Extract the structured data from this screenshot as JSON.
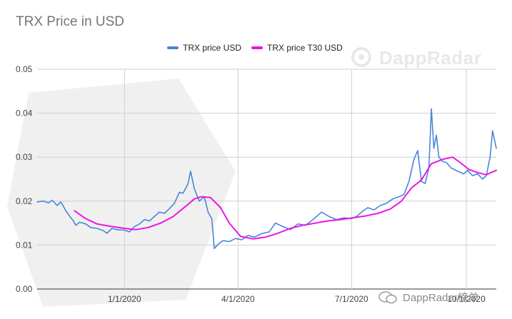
{
  "chart_data": {
    "type": "line",
    "title": "TRX Price in USD",
    "xlabel": "",
    "ylabel": "",
    "ylim": [
      0,
      0.05
    ],
    "x_range": [
      "2019-10-23",
      "2020-10-25"
    ],
    "y_ticks": [
      "0.00",
      "0.01",
      "0.02",
      "0.03",
      "0.04",
      "0.05"
    ],
    "x_ticks": [
      {
        "date": "2020-01-01",
        "label": "1/1/2020"
      },
      {
        "date": "2020-04-01",
        "label": "4/1/2020"
      },
      {
        "date": "2020-07-01",
        "label": "7/1/2020"
      },
      {
        "date": "2020-10-01",
        "label": "10/1/2020"
      }
    ],
    "grid": true,
    "legend_position": "top",
    "series": [
      {
        "name": "TRX price USD",
        "color": "#4a86d8",
        "points": [
          [
            "2019-10-23",
            0.0198
          ],
          [
            "2019-10-28",
            0.02
          ],
          [
            "2019-11-01",
            0.0196
          ],
          [
            "2019-11-04",
            0.0202
          ],
          [
            "2019-11-08",
            0.019
          ],
          [
            "2019-11-11",
            0.0198
          ],
          [
            "2019-11-15",
            0.0178
          ],
          [
            "2019-11-18",
            0.0166
          ],
          [
            "2019-11-21",
            0.0155
          ],
          [
            "2019-11-23",
            0.0145
          ],
          [
            "2019-11-26",
            0.0152
          ],
          [
            "2019-12-01",
            0.0148
          ],
          [
            "2019-12-05",
            0.014
          ],
          [
            "2019-12-10",
            0.0138
          ],
          [
            "2019-12-15",
            0.0133
          ],
          [
            "2019-12-18",
            0.0127
          ],
          [
            "2019-12-22",
            0.0138
          ],
          [
            "2019-12-26",
            0.0135
          ],
          [
            "2020-01-01",
            0.0134
          ],
          [
            "2020-01-05",
            0.013
          ],
          [
            "2020-01-09",
            0.0142
          ],
          [
            "2020-01-13",
            0.0148
          ],
          [
            "2020-01-17",
            0.0158
          ],
          [
            "2020-01-21",
            0.0155
          ],
          [
            "2020-01-25",
            0.0165
          ],
          [
            "2020-01-29",
            0.0175
          ],
          [
            "2020-02-02",
            0.0172
          ],
          [
            "2020-02-06",
            0.0183
          ],
          [
            "2020-02-10",
            0.0195
          ],
          [
            "2020-02-14",
            0.022
          ],
          [
            "2020-02-17",
            0.0218
          ],
          [
            "2020-02-21",
            0.024
          ],
          [
            "2020-02-23",
            0.0268
          ],
          [
            "2020-02-26",
            0.0228
          ],
          [
            "2020-03-01",
            0.02
          ],
          [
            "2020-03-05",
            0.021
          ],
          [
            "2020-03-08",
            0.0175
          ],
          [
            "2020-03-11",
            0.016
          ],
          [
            "2020-03-13",
            0.0092
          ],
          [
            "2020-03-16",
            0.0102
          ],
          [
            "2020-03-20",
            0.011
          ],
          [
            "2020-03-25",
            0.0108
          ],
          [
            "2020-03-30",
            0.0115
          ],
          [
            "2020-04-04",
            0.0112
          ],
          [
            "2020-04-09",
            0.0122
          ],
          [
            "2020-04-14",
            0.0118
          ],
          [
            "2020-04-20",
            0.0126
          ],
          [
            "2020-04-26",
            0.013
          ],
          [
            "2020-05-01",
            0.015
          ],
          [
            "2020-05-07",
            0.0142
          ],
          [
            "2020-05-13",
            0.0135
          ],
          [
            "2020-05-19",
            0.0148
          ],
          [
            "2020-05-25",
            0.0145
          ],
          [
            "2020-06-01",
            0.016
          ],
          [
            "2020-06-07",
            0.0175
          ],
          [
            "2020-06-13",
            0.0165
          ],
          [
            "2020-06-19",
            0.0158
          ],
          [
            "2020-06-25",
            0.0162
          ],
          [
            "2020-07-01",
            0.016
          ],
          [
            "2020-07-05",
            0.0165
          ],
          [
            "2020-07-09",
            0.0175
          ],
          [
            "2020-07-14",
            0.0185
          ],
          [
            "2020-07-19",
            0.018
          ],
          [
            "2020-07-24",
            0.019
          ],
          [
            "2020-07-29",
            0.0195
          ],
          [
            "2020-08-03",
            0.0205
          ],
          [
            "2020-08-08",
            0.021
          ],
          [
            "2020-08-12",
            0.0215
          ],
          [
            "2020-08-16",
            0.0245
          ],
          [
            "2020-08-20",
            0.0295
          ],
          [
            "2020-08-23",
            0.0315
          ],
          [
            "2020-08-26",
            0.0245
          ],
          [
            "2020-08-29",
            0.024
          ],
          [
            "2020-09-01",
            0.0275
          ],
          [
            "2020-09-03",
            0.041
          ],
          [
            "2020-09-05",
            0.032
          ],
          [
            "2020-09-07",
            0.035
          ],
          [
            "2020-09-09",
            0.03
          ],
          [
            "2020-09-12",
            0.029
          ],
          [
            "2020-09-15",
            0.0288
          ],
          [
            "2020-09-19",
            0.0275
          ],
          [
            "2020-09-24",
            0.0268
          ],
          [
            "2020-09-29",
            0.0262
          ],
          [
            "2020-10-02",
            0.027
          ],
          [
            "2020-10-06",
            0.0258
          ],
          [
            "2020-10-10",
            0.0262
          ],
          [
            "2020-10-14",
            0.025
          ],
          [
            "2020-10-17",
            0.0258
          ],
          [
            "2020-10-20",
            0.03
          ],
          [
            "2020-10-22",
            0.036
          ],
          [
            "2020-10-25",
            0.032
          ]
        ]
      },
      {
        "name": "TRX price T30 USD",
        "color": "#ea16e6",
        "points": [
          [
            "2019-11-22",
            0.0178
          ],
          [
            "2019-12-01",
            0.016
          ],
          [
            "2019-12-10",
            0.0148
          ],
          [
            "2019-12-20",
            0.0143
          ],
          [
            "2020-01-01",
            0.0138
          ],
          [
            "2020-01-10",
            0.0135
          ],
          [
            "2020-01-20",
            0.014
          ],
          [
            "2020-01-30",
            0.015
          ],
          [
            "2020-02-09",
            0.0165
          ],
          [
            "2020-02-19",
            0.0188
          ],
          [
            "2020-02-26",
            0.0205
          ],
          [
            "2020-03-03",
            0.021
          ],
          [
            "2020-03-10",
            0.0208
          ],
          [
            "2020-03-18",
            0.0185
          ],
          [
            "2020-03-25",
            0.015
          ],
          [
            "2020-04-03",
            0.012
          ],
          [
            "2020-04-13",
            0.0114
          ],
          [
            "2020-04-23",
            0.0118
          ],
          [
            "2020-05-03",
            0.0127
          ],
          [
            "2020-05-13",
            0.0138
          ],
          [
            "2020-05-23",
            0.0145
          ],
          [
            "2020-06-02",
            0.015
          ],
          [
            "2020-06-12",
            0.0155
          ],
          [
            "2020-06-22",
            0.0158
          ],
          [
            "2020-07-02",
            0.0162
          ],
          [
            "2020-07-12",
            0.0166
          ],
          [
            "2020-07-22",
            0.0172
          ],
          [
            "2020-08-01",
            0.0182
          ],
          [
            "2020-08-10",
            0.02
          ],
          [
            "2020-08-18",
            0.023
          ],
          [
            "2020-08-26",
            0.0248
          ],
          [
            "2020-09-03",
            0.0285
          ],
          [
            "2020-09-12",
            0.0295
          ],
          [
            "2020-09-20",
            0.03
          ],
          [
            "2020-09-26",
            0.0288
          ],
          [
            "2020-10-03",
            0.0272
          ],
          [
            "2020-10-10",
            0.0265
          ],
          [
            "2020-10-17",
            0.026
          ],
          [
            "2020-10-25",
            0.027
          ]
        ]
      }
    ]
  },
  "watermark": {
    "brand": "DappRadar",
    "footer": "DappRadar榜单"
  }
}
